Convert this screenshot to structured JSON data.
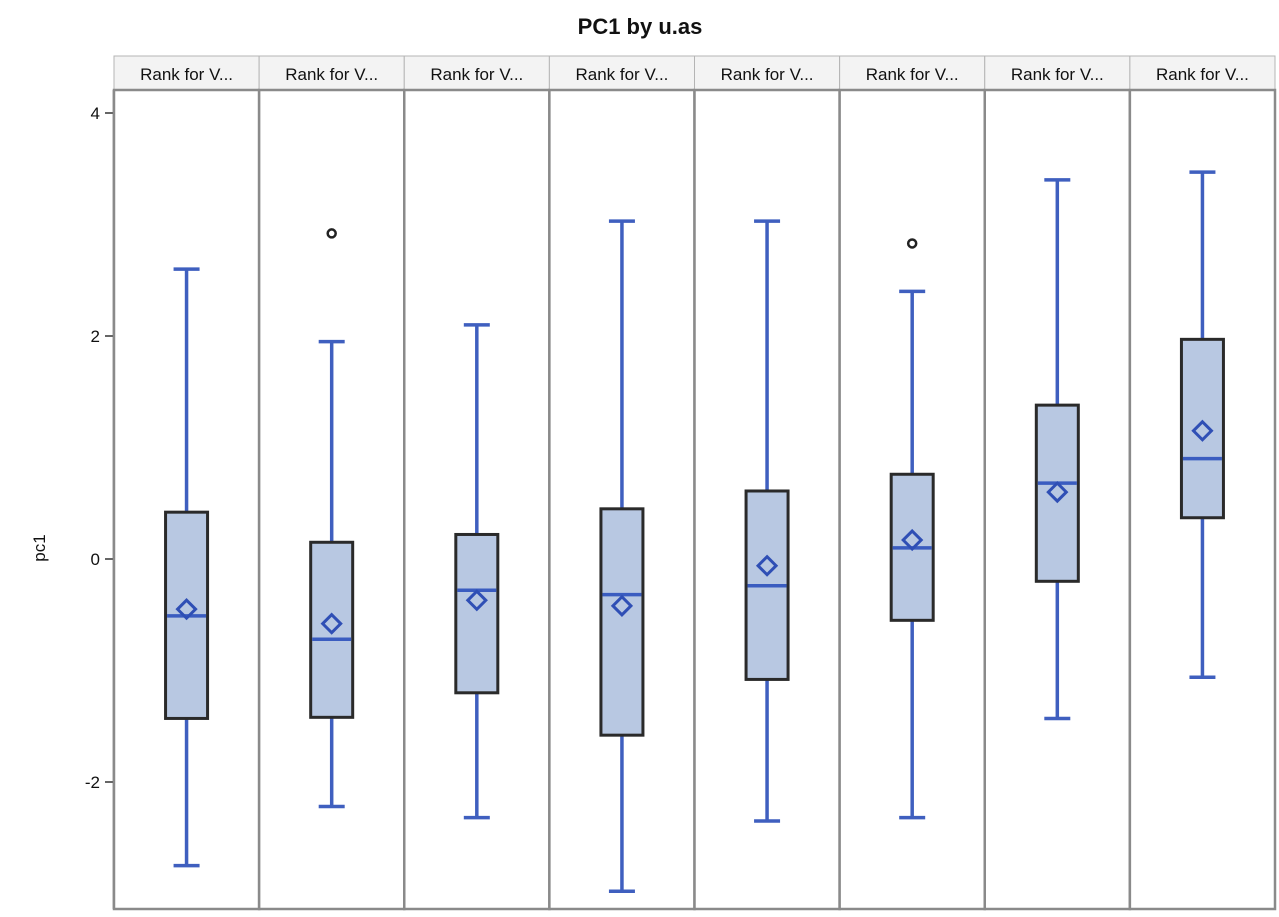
{
  "chart_data": {
    "type": "box",
    "title": "PC1 by u.as",
    "ylabel": "pc1",
    "xlabel": "",
    "ylim": [
      -2.95,
      4.2
    ],
    "yticks": [
      4,
      2,
      0,
      -2
    ],
    "grid": false,
    "panels": [
      {
        "label": "Rank for V...",
        "min": -2.75,
        "q1": -1.43,
        "median": -0.51,
        "q3": 0.42,
        "max": 2.6,
        "mean": -0.45,
        "outliers": []
      },
      {
        "label": "Rank for V...",
        "min": -2.22,
        "q1": -1.42,
        "median": -0.72,
        "q3": 0.15,
        "max": 1.95,
        "mean": -0.58,
        "outliers": [
          2.92
        ]
      },
      {
        "label": "Rank for V...",
        "min": -2.32,
        "q1": -1.2,
        "median": -0.28,
        "q3": 0.22,
        "max": 2.1,
        "mean": -0.37,
        "outliers": []
      },
      {
        "label": "Rank for V...",
        "min": -2.98,
        "q1": -1.58,
        "median": -0.32,
        "q3": 0.45,
        "max": 3.03,
        "mean": -0.42,
        "outliers": []
      },
      {
        "label": "Rank for V...",
        "min": -2.35,
        "q1": -1.08,
        "median": -0.24,
        "q3": 0.61,
        "max": 3.03,
        "mean": -0.06,
        "outliers": []
      },
      {
        "label": "Rank for V...",
        "min": -2.32,
        "q1": -0.55,
        "median": 0.1,
        "q3": 0.76,
        "max": 2.4,
        "mean": 0.17,
        "outliers": [
          2.83
        ]
      },
      {
        "label": "Rank for V...",
        "min": -1.43,
        "q1": -0.2,
        "median": 0.68,
        "q3": 1.38,
        "max": 3.4,
        "mean": 0.6,
        "outliers": []
      },
      {
        "label": "Rank for V...",
        "min": -1.06,
        "q1": 0.37,
        "median": 0.9,
        "q3": 1.97,
        "max": 3.47,
        "mean": 1.15,
        "outliers": []
      }
    ],
    "colors": {
      "box_fill": "#b8c8e2",
      "box_outline": "#2a2a2a",
      "whisker": "#3f5fbf",
      "median": "#3a5cc0",
      "mean_marker": "#2f4fb5",
      "outlier": "#222222",
      "panel_border": "#8a8a8a",
      "header_fill": "#f3f3f3"
    }
  }
}
